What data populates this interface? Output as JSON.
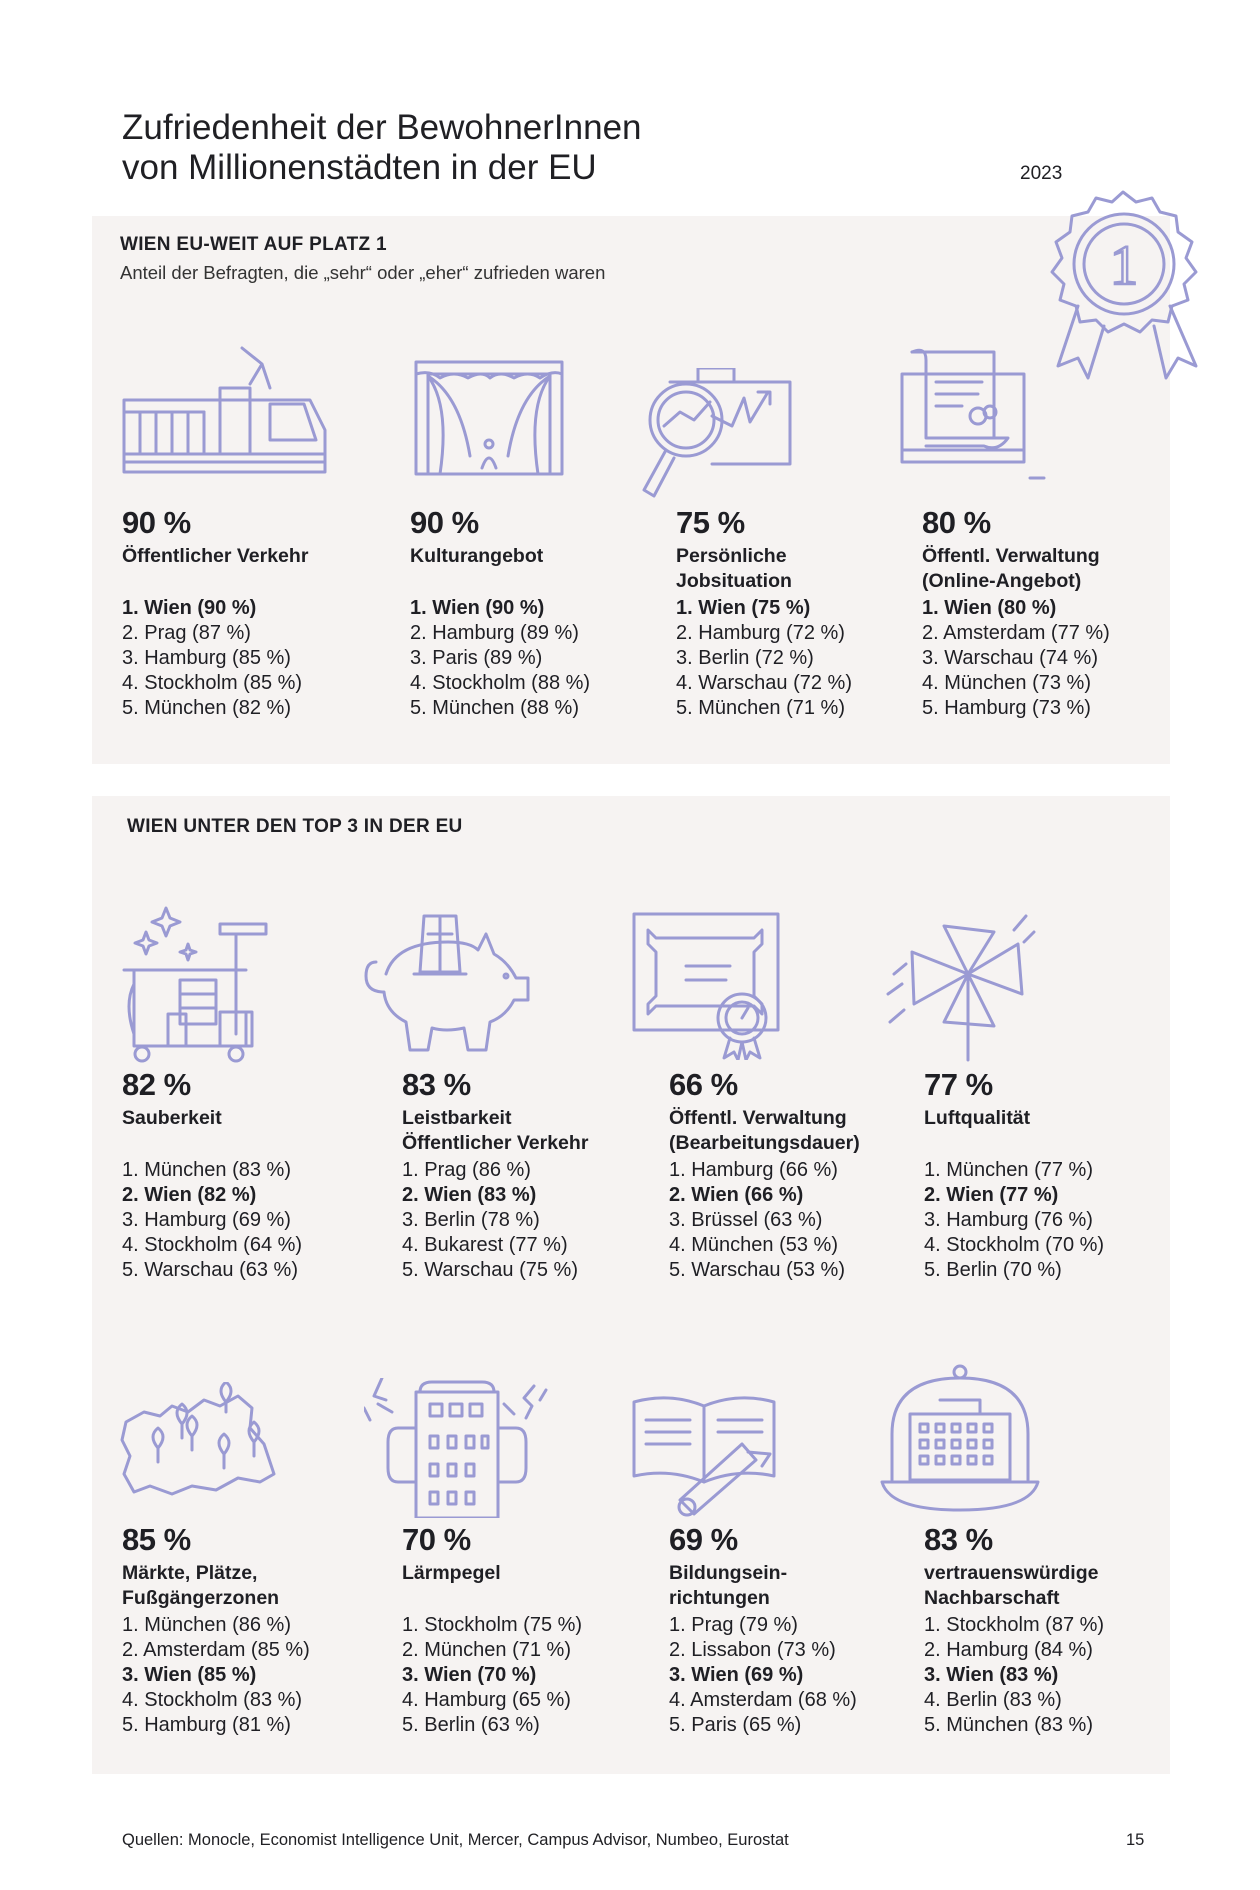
{
  "title_line1": "Zufriedenheit der BewohnerInnen",
  "title_line2": "von Millionenstädten in der EU",
  "year": "2023",
  "medal_number": "1",
  "section1": {
    "heading": "WIEN EU-WEIT AUF PLATZ 1",
    "subheading": "Anteil der Befragten, die „sehr“ oder „eher“ zufrieden waren",
    "items": [
      {
        "icon": "tram-icon",
        "percent": "90 %",
        "category": "Öffentlicher Verkehr",
        "ranking": [
          "1. Wien (90 %)",
          "2. Prag (87 %)",
          "3. Hamburg (85 %)",
          "4. Stockholm (85 %)",
          "5. München (82 %)"
        ],
        "highlight": 0
      },
      {
        "icon": "theater-stage-icon",
        "percent": "90 %",
        "category": "Kulturangebot",
        "ranking": [
          "1. Wien (90 %)",
          "2. Hamburg (89 %)",
          "3. Paris (89 %)",
          "4. Stockholm (88 %)",
          "5. München (88 %)"
        ],
        "highlight": 0
      },
      {
        "icon": "briefcase-magnifier-icon",
        "percent": "75 %",
        "category": "Persönliche\nJobsituation",
        "ranking": [
          "1. Wien (75 %)",
          "2. Hamburg (72 %)",
          "3. Berlin (72 %)",
          "4. Warschau (72 %)",
          "5. München (71 %)"
        ],
        "highlight": 0
      },
      {
        "icon": "computer-document-icon",
        "percent": "80 %",
        "category": "Öffentl. Verwaltung\n(Online-Angebot)",
        "ranking": [
          "1. Wien (80 %)",
          "2. Amsterdam (77 %)",
          "3. Warschau (74 %)",
          "4. München (73 %)",
          "5. Hamburg (73 %)"
        ],
        "highlight": 0
      }
    ]
  },
  "section2": {
    "heading": "WIEN UNTER DEN TOP 3 IN DER EU",
    "items": [
      {
        "icon": "cleaning-cart-icon",
        "percent": "82 %",
        "category": "Sauberkeit",
        "ranking": [
          "1. München (83 %)",
          "2. Wien (82 %)",
          "3. Hamburg (69 %)",
          "4. Stockholm (64 %)",
          "5. Warschau (63 %)"
        ],
        "highlight": 1
      },
      {
        "icon": "piggy-bank-ticket-icon",
        "percent": "83 %",
        "category": "Leistbarkeit\nÖffentlicher Verkehr",
        "ranking": [
          "1. Prag (86 %)",
          "2. Wien (83 %)",
          "3. Berlin (78 %)",
          "4. Bukarest (77 %)",
          "5. Warschau (75 %)"
        ],
        "highlight": 1
      },
      {
        "icon": "certificate-icon",
        "percent": "66 %",
        "category": "Öffentl. Verwaltung\n(Bearbeitungsdauer)",
        "ranking": [
          "1. Hamburg (66 %)",
          "2. Wien (66 %)",
          "3. Brüssel (63 %)",
          "4. München (53 %)",
          "5. Warschau (53 %)"
        ],
        "highlight": 1
      },
      {
        "icon": "pinwheel-icon",
        "percent": "77 %",
        "category": "Luftqualität",
        "ranking": [
          "1. München (77 %)",
          "2. Wien (77 %)",
          "3. Hamburg (76 %)",
          "4. Stockholm (70 %)",
          "5. Berlin (70 %)"
        ],
        "highlight": 1
      },
      {
        "icon": "map-pins-icon",
        "percent": "85 %",
        "category": "Märkte, Plätze,\nFußgängerzonen",
        "ranking": [
          "1. München (86 %)",
          "2. Amsterdam (85 %)",
          "3. Wien (85 %)",
          "4. Stockholm (83 %)",
          "5. Hamburg (81 %)"
        ],
        "highlight": 2
      },
      {
        "icon": "building-headphones-icon",
        "percent": "70 %",
        "category": "Lärmpegel",
        "ranking": [
          "1. Stockholm (75 %)",
          "2. München (71 %)",
          "3. Wien (70 %)",
          "4. Hamburg (65 %)",
          "5. Berlin (63 %)"
        ],
        "highlight": 2
      },
      {
        "icon": "book-diploma-icon",
        "percent": "69 %",
        "category": "Bildungsein-\nrichtungen",
        "ranking": [
          "1. Prag (79 %)",
          "2. Lissabon (73 %)",
          "3. Wien (69 %)",
          "4. Amsterdam (68 %)",
          "5. Paris (65 %)"
        ],
        "highlight": 2
      },
      {
        "icon": "building-bell-jar-icon",
        "percent": "83 %",
        "category": "vertrauenswürdige\nNachbarschaft",
        "ranking": [
          "1. Stockholm (87 %)",
          "2. Hamburg (84 %)",
          "3. Wien (83 %)",
          "4. Berlin (83 %)",
          "5. München (83 %)"
        ],
        "highlight": 2
      }
    ]
  },
  "footer": "Quellen: Monocle, Economist Intelligence Unit, Mercer, Campus Advisor, Numbeo, Eurostat",
  "page_number": "15",
  "colors": {
    "panel": "#f6f3f2",
    "icon_stroke": "#9a9ad3",
    "text": "#1f1f24"
  }
}
